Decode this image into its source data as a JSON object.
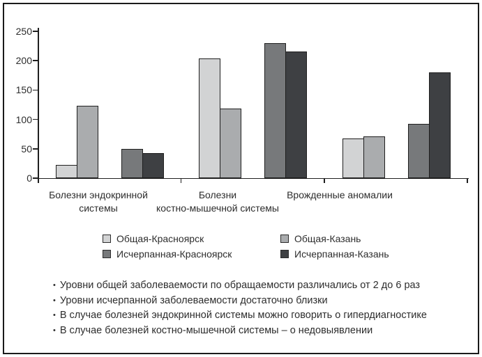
{
  "frame": {
    "border_color": "#1a1a1a",
    "background": "#ffffff"
  },
  "chart_data": {
    "type": "bar",
    "title": "",
    "xlabel": "",
    "ylabel": "",
    "categories": [
      "Болезни эндокринной системы",
      "Болезни костно-мышечной системы",
      "Врожденные аномалии"
    ],
    "category_label_lines": [
      [
        "Болезни эндокринной",
        "системы"
      ],
      [
        "Болезни",
        "костно-мышечной системы"
      ],
      [
        "Врожденные аномалии"
      ]
    ],
    "series": [
      {
        "name": "Общая-Красноярск",
        "color": "#d2d3d4",
        "values": [
          22,
          204,
          68
        ]
      },
      {
        "name": "Общая-Казань",
        "color": "#aaacae",
        "values": [
          123,
          119,
          71
        ]
      },
      {
        "name": "Исчерпанная-Красноярск",
        "color": "#77797b",
        "values": [
          50,
          230,
          92
        ]
      },
      {
        "name": "Исчерпанная-Казань",
        "color": "#3e4043",
        "values": [
          43,
          216,
          180
        ]
      }
    ],
    "ylim": [
      0,
      250
    ],
    "yticks": [
      0,
      50,
      100,
      150,
      200,
      250
    ],
    "grid": false,
    "legend_position": "below-chart",
    "bar_outline_color": "#1f1f1f",
    "axis_color": "#1f1f1f"
  },
  "notes": {
    "bullet": "•",
    "items": [
      "Уровни общей заболеваемости по обращаемости различались от 2 до 6 раз",
      "Уровни исчерпанной заболеваемости достаточно близки",
      "В случае болезней эндокринной системы можно говорить о гипердиагностике",
      "В случае болезней костно-мышечной системы – о недовыявлении"
    ]
  }
}
